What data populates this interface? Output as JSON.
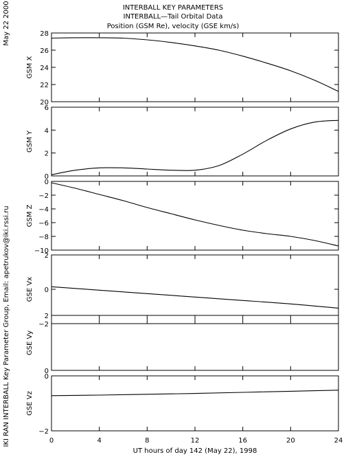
{
  "header": {
    "title1": "INTERBALL KEY PARAMETERS",
    "title2": "INTERBALL—Tail Orbital Data",
    "title3": "Position (GSM Re), velocity (GSE km/s)"
  },
  "side": {
    "date": "May 22 2000",
    "credit": "IKI RAN INTERBALL Key Parameter Group, Email: apetrukov@iki.rssi.ru"
  },
  "chart_data": [
    {
      "type": "line",
      "ylabel": "GSM X",
      "ylim": [
        20,
        28
      ],
      "yticks": [
        20,
        22,
        24,
        26,
        28
      ],
      "x": [
        0,
        2,
        4,
        6,
        8,
        10,
        12,
        14,
        16,
        18,
        20,
        22,
        24
      ],
      "values": [
        27.4,
        27.45,
        27.45,
        27.4,
        27.2,
        26.9,
        26.5,
        26.0,
        25.3,
        24.5,
        23.6,
        22.5,
        21.2
      ]
    },
    {
      "type": "line",
      "ylabel": "GSM Y",
      "ylim": [
        0,
        6
      ],
      "yticks": [
        0,
        2,
        4,
        6
      ],
      "x": [
        0,
        2,
        4,
        6,
        8,
        10,
        12,
        14,
        16,
        18,
        20,
        22,
        24
      ],
      "values": [
        0.1,
        0.5,
        0.7,
        0.7,
        0.6,
        0.5,
        0.5,
        0.9,
        1.9,
        3.1,
        4.1,
        4.7,
        4.85
      ]
    },
    {
      "type": "line",
      "ylabel": "GSM Z",
      "ylim": [
        -10,
        0
      ],
      "yticks": [
        -10,
        -8,
        -6,
        -4,
        -2,
        0
      ],
      "x": [
        0,
        2,
        4,
        6,
        8,
        10,
        12,
        14,
        16,
        18,
        20,
        22,
        24
      ],
      "values": [
        -0.2,
        -1.0,
        -1.9,
        -2.8,
        -3.8,
        -4.7,
        -5.6,
        -6.4,
        -7.1,
        -7.6,
        -8.0,
        -8.6,
        -9.4
      ]
    },
    {
      "type": "line",
      "ylabel": "GSE Vx",
      "ylim": [
        -2,
        2
      ],
      "yticks": [
        -2,
        0,
        2
      ],
      "x": [
        0,
        4,
        8,
        12,
        16,
        20,
        24
      ],
      "values": [
        0.15,
        -0.05,
        -0.25,
        -0.45,
        -0.65,
        -0.85,
        -1.1
      ]
    },
    {
      "type": "line",
      "ylabel": "GSE Vy",
      "ylim": [
        0,
        2
      ],
      "yticks": [
        0,
        2
      ],
      "x": [],
      "values": []
    },
    {
      "type": "line",
      "ylabel": "GSE Vz",
      "ylim": [
        -2,
        0
      ],
      "yticks": [
        -2,
        0
      ],
      "x": [
        0,
        4,
        8,
        12,
        16,
        20,
        24
      ],
      "values": [
        -0.72,
        -0.7,
        -0.67,
        -0.64,
        -0.6,
        -0.56,
        -0.52
      ]
    }
  ],
  "xaxis": {
    "xlim": [
      0,
      24
    ],
    "ticks": [
      0,
      4,
      8,
      12,
      16,
      20,
      24
    ],
    "label": "UT hours of day 142 (May 22), 1998"
  }
}
